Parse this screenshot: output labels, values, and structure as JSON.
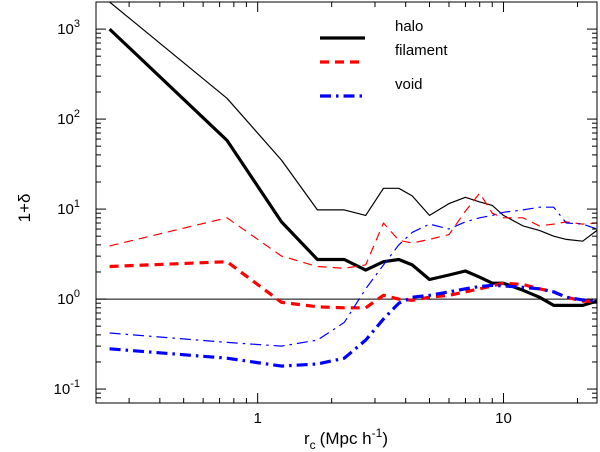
{
  "chart_data": {
    "type": "line",
    "title": "",
    "xlabel": "r_c (Mpc h^-1)",
    "xlabel_parts": {
      "base": "r",
      "sub": "c",
      "unit": "(Mpc  h",
      "sup": "-1",
      "close": ")"
    },
    "ylabel": "1+δ",
    "xscale": "log",
    "yscale": "log",
    "xlim": [
      0.22,
      24
    ],
    "ylim": [
      0.07,
      2000
    ],
    "x_ticks": [
      {
        "value": 1,
        "label": "1"
      },
      {
        "value": 10,
        "label": "10"
      }
    ],
    "y_ticks": [
      {
        "value": 0.1,
        "base": "10",
        "exp": "-1"
      },
      {
        "value": 1,
        "base": "10",
        "exp": "0"
      },
      {
        "value": 10,
        "base": "10",
        "exp": "1"
      },
      {
        "value": 100,
        "base": "10",
        "exp": "2"
      },
      {
        "value": 1000,
        "base": "10",
        "exp": "3"
      }
    ],
    "reference_line": {
      "y": 1
    },
    "legend_position": "top-right",
    "series": [
      {
        "name": "halo",
        "legend": true,
        "color": "#000000",
        "dash": "solid",
        "weight": "thick",
        "x": [
          0.25,
          0.75,
          1.25,
          1.75,
          2.25,
          2.75,
          3.25,
          3.75,
          4.25,
          5.0,
          6.0,
          7.0,
          8.0,
          9.0,
          10.0,
          12.0,
          14.0,
          16.0,
          18.0,
          21.0,
          24.0
        ],
        "y": [
          1000,
          58,
          7.2,
          2.75,
          2.75,
          2.1,
          2.6,
          2.75,
          2.4,
          1.65,
          1.85,
          2.05,
          1.75,
          1.5,
          1.5,
          1.25,
          1.05,
          0.85,
          0.85,
          0.85,
          0.95
        ]
      },
      {
        "name": "halo (second curve)",
        "legend": false,
        "color": "#000000",
        "dash": "solid",
        "weight": "thin",
        "x": [
          0.25,
          0.75,
          1.25,
          1.75,
          2.25,
          2.75,
          3.25,
          3.75,
          4.25,
          5.0,
          6.0,
          7.0,
          8.0,
          9.0,
          10.0,
          12.0,
          14.0,
          16.0,
          18.0,
          21.0,
          24.0
        ],
        "y": [
          2000,
          170,
          35,
          9.8,
          9.8,
          8.5,
          17,
          17,
          14,
          8.5,
          11.5,
          13.5,
          12,
          11,
          8.5,
          6.5,
          5.8,
          5.0,
          4.6,
          4.4,
          5.8
        ]
      },
      {
        "name": "filament",
        "legend": true,
        "color": "#ff0000",
        "dash": "dashed",
        "weight": "thick",
        "x": [
          0.25,
          0.75,
          1.25,
          1.75,
          2.25,
          2.75,
          3.25,
          3.75,
          4.25,
          5.0,
          6.0,
          7.0,
          8.0,
          9.0,
          10.0,
          12.0,
          14.0,
          16.0,
          18.0,
          21.0,
          24.0
        ],
        "y": [
          2.3,
          2.6,
          0.92,
          0.82,
          0.8,
          0.8,
          1.1,
          1.0,
          0.97,
          1.05,
          1.1,
          1.2,
          1.3,
          1.4,
          1.5,
          1.45,
          1.3,
          1.2,
          1.05,
          0.95,
          0.95
        ]
      },
      {
        "name": "filament (second curve)",
        "legend": false,
        "color": "#ff0000",
        "dash": "dashed",
        "weight": "thin",
        "x": [
          0.25,
          0.75,
          1.25,
          1.75,
          2.25,
          2.75,
          3.25,
          3.75,
          4.25,
          5.0,
          6.0,
          7.0,
          8.0,
          9.0,
          10.0,
          12.0,
          14.0,
          16.0,
          18.0,
          21.0,
          24.0
        ],
        "y": [
          3.9,
          8.0,
          3.0,
          2.3,
          2.2,
          2.4,
          7.0,
          4.5,
          4.2,
          4.6,
          5.2,
          9.5,
          15,
          9.0,
          8.0,
          8.0,
          6.5,
          6.8,
          7.2,
          6.8,
          7.0
        ]
      },
      {
        "name": "void",
        "legend": true,
        "color": "#0000ff",
        "dash": "dashdot",
        "weight": "thick",
        "x": [
          0.25,
          0.75,
          1.25,
          1.75,
          2.25,
          2.75,
          3.25,
          3.75,
          4.25,
          5.0,
          6.0,
          7.0,
          8.0,
          9.0,
          10.0,
          12.0,
          14.0,
          16.0,
          18.0,
          21.0,
          24.0
        ],
        "y": [
          0.28,
          0.22,
          0.18,
          0.19,
          0.22,
          0.35,
          0.6,
          0.9,
          1.05,
          1.1,
          1.2,
          1.3,
          1.38,
          1.42,
          1.4,
          1.35,
          1.3,
          1.2,
          1.05,
          0.98,
          0.96
        ]
      },
      {
        "name": "void (second curve)",
        "legend": false,
        "color": "#0000ff",
        "dash": "dashdot",
        "weight": "thin",
        "x": [
          0.25,
          0.75,
          1.25,
          1.75,
          2.25,
          2.75,
          3.25,
          3.75,
          4.25,
          5.0,
          6.0,
          7.0,
          8.0,
          9.0,
          10.0,
          12.0,
          14.0,
          16.0,
          18.0,
          21.0,
          24.0
        ],
        "y": [
          0.42,
          0.33,
          0.3,
          0.35,
          0.55,
          1.3,
          2.4,
          4.0,
          5.5,
          6.8,
          6.0,
          7.2,
          8.0,
          8.5,
          9.2,
          9.8,
          10.5,
          10.5,
          7.0,
          6.8,
          6.0
        ]
      }
    ]
  }
}
